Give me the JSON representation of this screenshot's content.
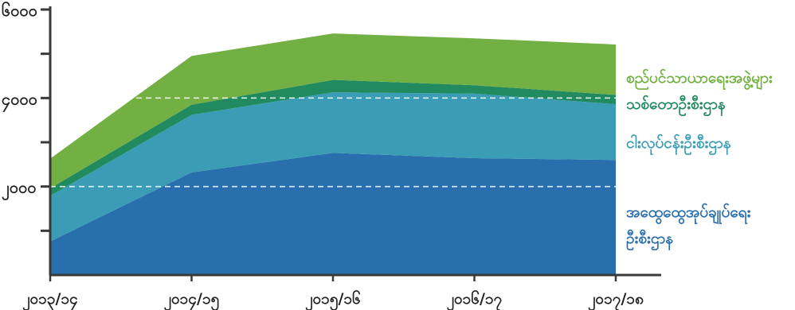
{
  "chart_data": {
    "type": "area",
    "stacked": true,
    "title": "",
    "xlabel": "",
    "ylabel": "",
    "categories": [
      "၂၀၁၃/၁၄",
      "၂၀၁၄/၁၅",
      "၂၀၁၅/၁၆",
      "၂၀၁၆/၁၇",
      "၂၀၁၇/၁၈"
    ],
    "ylim": [
      0,
      6000
    ],
    "yticks": [
      {
        "value": 2000,
        "label": "၂၀၀၀"
      },
      {
        "value": 4000,
        "label": "၄၀၀၀"
      },
      {
        "value": 6000,
        "label": "၆၀၀၀"
      }
    ],
    "grid": true,
    "legend": "right",
    "series": [
      {
        "name": "အထွေထွေအုပ်ချုပ်ရေး ဦးစီးဌာန",
        "color": "#2a6fad",
        "values": [
          760,
          2320,
          2760,
          2640,
          2600
        ]
      },
      {
        "name": "ငါးလုပ်ငန်းဦးစီးဌာန",
        "color": "#3a9db5",
        "values": [
          1030,
          1300,
          1370,
          1460,
          1260
        ]
      },
      {
        "name": "သစ်တောဦးစီးဌာန",
        "color": "#218a5e",
        "values": [
          170,
          230,
          280,
          190,
          210
        ]
      },
      {
        "name": "စည်ပင်သာယာရေးအဖွဲ့များ",
        "color": "#72b043",
        "values": [
          670,
          1100,
          1050,
          1060,
          1140
        ]
      }
    ]
  }
}
